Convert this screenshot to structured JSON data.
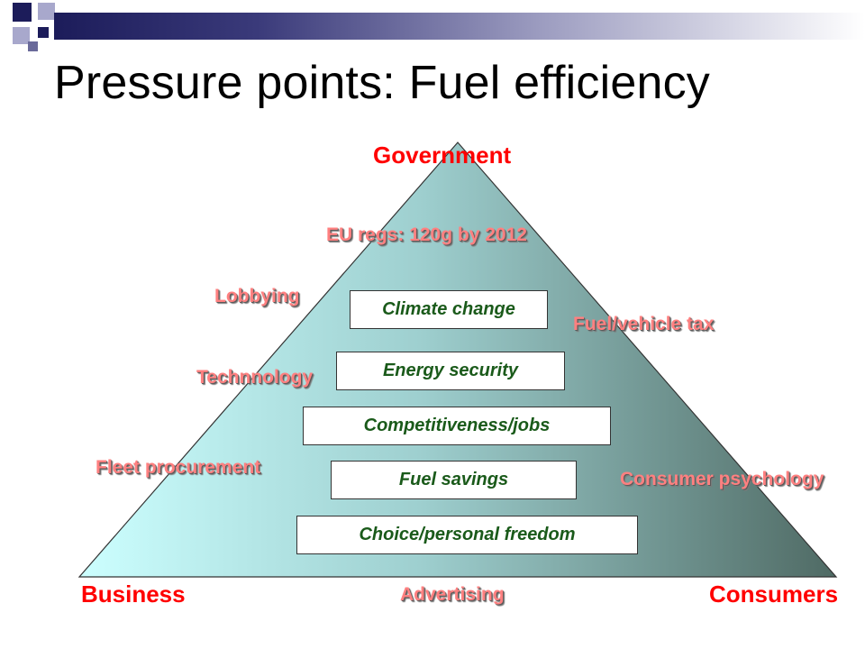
{
  "slide": {
    "title": "Pressure points: Fuel efficiency",
    "colors": {
      "accent_red": "#ff0000",
      "label_pink": "#ff8080",
      "box_text": "#1a5a1a",
      "header_navy": "#1c1c5a"
    }
  },
  "corners": {
    "top": "Government",
    "left": "Business",
    "right": "Consumers"
  },
  "pressure_labels": [
    "EU regs: 120g by 2012",
    "Lobbying",
    "Fuel/vehicle tax",
    "Technnology",
    "Fleet procurement",
    "Consumer psychology",
    "Advertising"
  ],
  "drivers": [
    "Climate change",
    "Energy security",
    "Competitiveness/jobs",
    "Fuel savings",
    "Choice/personal freedom"
  ]
}
